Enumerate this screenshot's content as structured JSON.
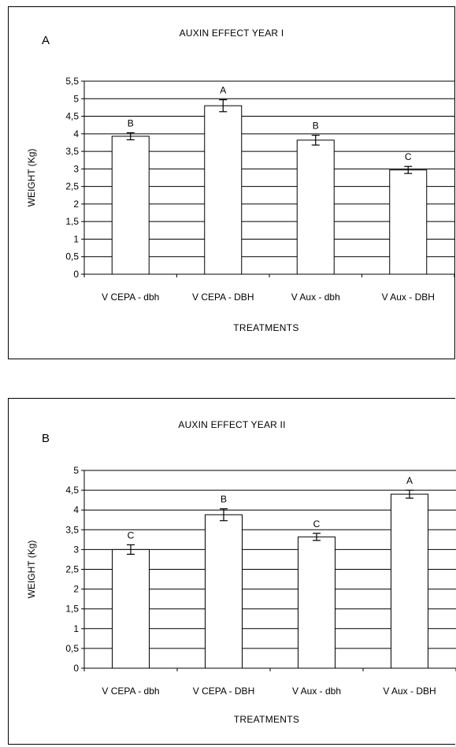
{
  "chart_data": [
    {
      "type": "bar",
      "panel_label": "A",
      "title": "AUXIN EFFECT YEAR I",
      "xlabel": "TREATMENTS",
      "ylabel": "WEIGHT (Kg)",
      "categories": [
        "V CEPA - dbh",
        "V CEPA - DBH",
        "V Aux - dbh",
        "V Aux - DBH"
      ],
      "values": [
        3.93,
        4.8,
        3.82,
        2.97
      ],
      "error": [
        0.1,
        0.17,
        0.14,
        0.1
      ],
      "significance_letters": [
        "B",
        "A",
        "B",
        "C"
      ],
      "ylim": [
        0,
        5.5
      ],
      "yticks": [
        "0",
        "0,5",
        "1",
        "1,5",
        "2",
        "2,5",
        "3",
        "3,5",
        "4",
        "4,5",
        "5",
        "5,5"
      ],
      "grid": true
    },
    {
      "type": "bar",
      "panel_label": "B",
      "title": "AUXIN EFFECT YEAR II",
      "xlabel": "TREATMENTS",
      "ylabel": "WEIGHT (Kg)",
      "categories": [
        "V CEPA - dbh",
        "V CEPA - DBH",
        "V Aux - dbh",
        "V Aux - DBH"
      ],
      "values": [
        3.0,
        3.88,
        3.32,
        4.4
      ],
      "error": [
        0.12,
        0.15,
        0.09,
        0.1
      ],
      "significance_letters": [
        "C",
        "B",
        "C",
        "A"
      ],
      "ylim": [
        0,
        5
      ],
      "yticks": [
        "0",
        "0,5",
        "1",
        "1,5",
        "2",
        "2,5",
        "3",
        "3,5",
        "4",
        "4,5",
        "5"
      ],
      "grid": true
    }
  ]
}
